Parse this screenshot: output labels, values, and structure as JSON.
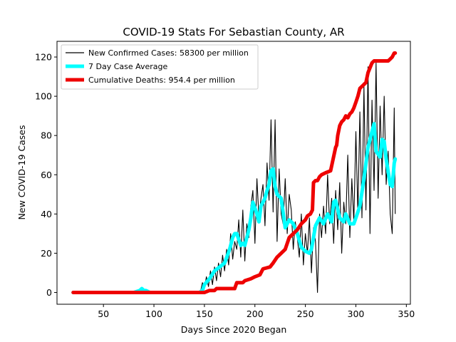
{
  "chart_data": {
    "type": "line",
    "title": "COVID-19 Stats For Sebastian County, AR",
    "xlabel": "Days Since 2020 Began",
    "ylabel": "New COVID-19 Cases",
    "xlim": [
      4,
      354
    ],
    "ylim": [
      -6,
      128
    ],
    "xticks": [
      50,
      100,
      150,
      200,
      250,
      300,
      350
    ],
    "yticks": [
      0,
      20,
      40,
      60,
      80,
      100,
      120
    ],
    "grid": false,
    "legend_position": "top-left",
    "series": [
      {
        "name": "New Confirmed Cases: 58300 per million",
        "color": "#000000",
        "style": "thin",
        "x": [
          20,
          40,
          60,
          80,
          86,
          88,
          90,
          92,
          96,
          100,
          110,
          120,
          130,
          140,
          145,
          146,
          148,
          150,
          152,
          154,
          156,
          158,
          160,
          162,
          164,
          166,
          168,
          170,
          172,
          174,
          176,
          178,
          180,
          182,
          184,
          186,
          188,
          190,
          192,
          194,
          196,
          198,
          200,
          202,
          204,
          206,
          208,
          210,
          212,
          214,
          216,
          218,
          220,
          222,
          224,
          226,
          228,
          230,
          232,
          234,
          236,
          238,
          240,
          242,
          244,
          246,
          248,
          250,
          252,
          254,
          256,
          258,
          260,
          262,
          264,
          266,
          268,
          270,
          272,
          274,
          276,
          278,
          280,
          282,
          284,
          286,
          288,
          290,
          292,
          294,
          296,
          298,
          300,
          302,
          304,
          306,
          308,
          310,
          312,
          314,
          316,
          318,
          320,
          322,
          324,
          326,
          328,
          330,
          332,
          334,
          336,
          338,
          339
        ],
        "y": [
          0,
          0,
          0,
          0,
          1,
          2,
          0,
          1,
          0,
          0,
          0,
          0,
          0,
          0,
          0,
          0,
          5,
          2,
          8,
          3,
          11,
          4,
          13,
          6,
          15,
          8,
          19,
          11,
          22,
          14,
          30,
          17,
          26,
          22,
          37,
          18,
          42,
          16,
          35,
          28,
          44,
          52,
          25,
          58,
          38,
          48,
          55,
          34,
          66,
          47,
          88,
          41,
          88,
          26,
          63,
          40,
          35,
          58,
          30,
          50,
          42,
          22,
          36,
          28,
          18,
          40,
          14,
          30,
          20,
          38,
          10,
          33,
          26,
          0,
          40,
          28,
          44,
          30,
          60,
          35,
          48,
          25,
          52,
          32,
          56,
          20,
          46,
          35,
          70,
          28,
          58,
          36,
          82,
          40,
          92,
          38,
          105,
          42,
          115,
          30,
          98,
          52,
          117,
          48,
          95,
          60,
          100,
          55,
          72,
          40,
          30,
          94,
          40
        ]
      },
      {
        "name": "7 Day Case Average",
        "color": "#00ffff",
        "style": "thick",
        "x": [
          20,
          40,
          60,
          80,
          86,
          88,
          90,
          92,
          96,
          100,
          110,
          120,
          130,
          140,
          145,
          148,
          150,
          155,
          160,
          165,
          170,
          175,
          178,
          180,
          182,
          186,
          188,
          190,
          194,
          196,
          198,
          200,
          202,
          204,
          206,
          208,
          210,
          212,
          214,
          216,
          218,
          220,
          222,
          226,
          230,
          234,
          238,
          242,
          246,
          250,
          254,
          256,
          260,
          264,
          268,
          272,
          276,
          278,
          280,
          284,
          288,
          290,
          294,
          298,
          300,
          304,
          308,
          312,
          316,
          318,
          320,
          324,
          326,
          328,
          330,
          334,
          336,
          338,
          339
        ],
        "y": [
          0,
          0,
          0,
          0,
          1,
          2,
          1,
          1,
          0,
          0,
          0,
          0,
          0,
          0,
          0,
          1,
          4,
          7,
          11,
          13,
          15,
          22,
          28,
          30,
          30,
          24,
          25,
          24,
          32,
          38,
          46,
          43,
          40,
          36,
          44,
          46,
          48,
          52,
          55,
          62,
          63,
          54,
          50,
          48,
          33,
          37,
          35,
          30,
          23,
          21,
          20,
          22,
          34,
          38,
          35,
          40,
          36,
          46,
          47,
          38,
          36,
          40,
          35,
          35,
          38,
          44,
          58,
          74,
          82,
          86,
          72,
          69,
          78,
          77,
          68,
          55,
          54,
          66,
          68
        ]
      },
      {
        "name": "Cumulative Deaths: 954.4 per million",
        "color": "#ee0000",
        "style": "thick",
        "x": [
          20,
          100,
          150,
          155,
          160,
          162,
          170,
          172,
          180,
          182,
          188,
          190,
          196,
          200,
          205,
          208,
          215,
          218,
          222,
          226,
          230,
          234,
          238,
          242,
          246,
          250,
          252,
          255,
          257,
          258,
          260,
          262,
          264,
          266,
          270,
          275,
          280,
          281,
          282,
          284,
          286,
          288,
          290,
          292,
          294,
          296,
          298,
          300,
          302,
          304,
          306,
          310,
          312,
          316,
          318,
          320,
          322,
          324,
          328,
          332,
          334,
          336,
          338,
          339
        ],
        "y": [
          0,
          0,
          0,
          1,
          1,
          2,
          2,
          2,
          2,
          5,
          5,
          6,
          7,
          8,
          9,
          12,
          13,
          15,
          18,
          20,
          22,
          28,
          30,
          32,
          35,
          37,
          39,
          40,
          42,
          56,
          57,
          57,
          59,
          60,
          61,
          62,
          74,
          75,
          80,
          85,
          87,
          88,
          90,
          89,
          91,
          92,
          94,
          97,
          100,
          104,
          105,
          107,
          112,
          117,
          118,
          118,
          118,
          118,
          118,
          118,
          119,
          120,
          122,
          122
        ]
      }
    ]
  }
}
